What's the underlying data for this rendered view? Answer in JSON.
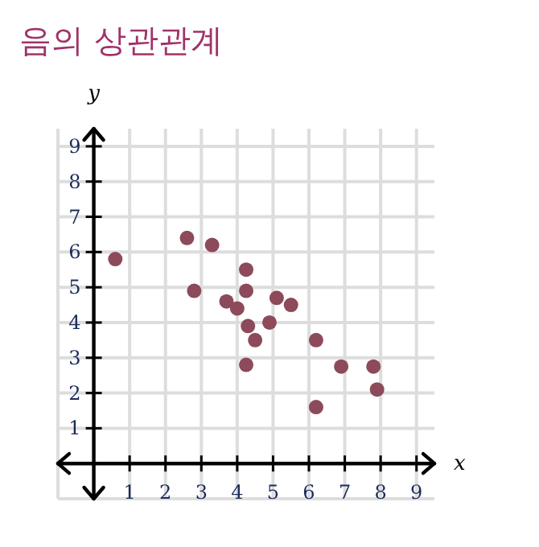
{
  "chart_data": {
    "type": "scatter",
    "title": "음의 상관관계",
    "xlabel": "x",
    "ylabel": "y",
    "x": [
      0.6,
      2.6,
      3.3,
      2.8,
      4.25,
      4.25,
      3.7,
      4.0,
      4.3,
      4.5,
      4.25,
      4.9,
      5.1,
      5.5,
      6.2,
      6.2,
      6.9,
      7.8,
      7.9
    ],
    "values": [
      5.8,
      6.4,
      6.2,
      4.9,
      5.5,
      4.9,
      4.6,
      4.4,
      3.9,
      3.5,
      2.8,
      4.0,
      4.7,
      4.5,
      3.5,
      1.6,
      2.75,
      2.75,
      2.1
    ],
    "color": "#8c4a5a",
    "marker": "circle",
    "xlim": [
      -1,
      9.5
    ],
    "ylim": [
      -1,
      9.5
    ],
    "xticks": [
      {
        "value": -1,
        "label": null
      },
      {
        "value": 0,
        "label": null
      },
      1,
      2,
      3,
      4,
      5,
      6,
      7,
      8,
      9
    ],
    "yticks": [
      {
        "value": -1,
        "label": null
      },
      {
        "value": 0,
        "label": null
      },
      1,
      2,
      3,
      4,
      5,
      6,
      7,
      8,
      9
    ],
    "grid": true
  }
}
